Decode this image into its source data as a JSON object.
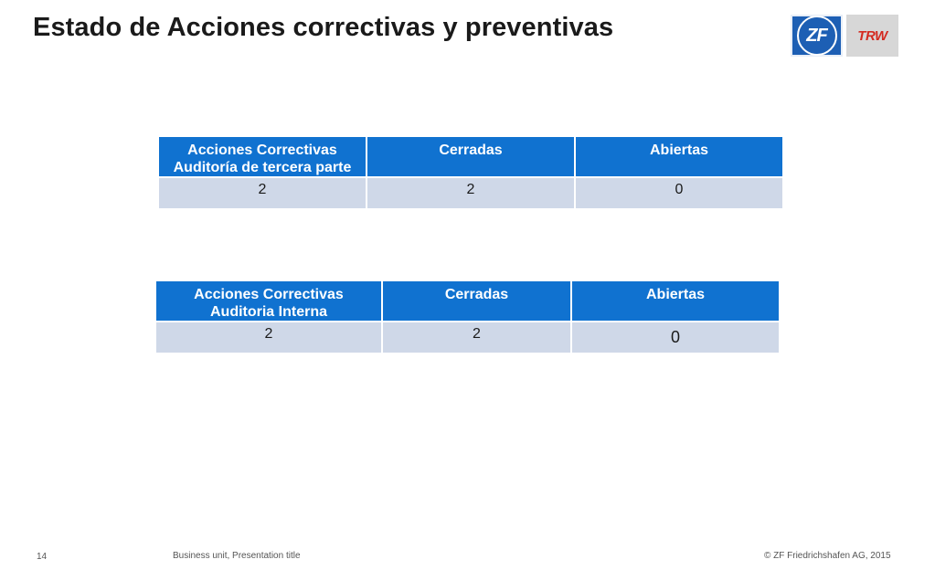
{
  "title": "Estado de Acciones correctivas y preventivas",
  "logos": {
    "zf": "ZF",
    "trw": "TRW"
  },
  "tables": [
    {
      "headers": [
        "Acciones Correctivas\nAuditoría de tercera parte",
        "Cerradas",
        "Abiertas"
      ],
      "header_lines": [
        [
          "Acciones Correctivas",
          "Auditoría de tercera parte"
        ],
        [
          "Cerradas"
        ],
        [
          "Abiertas"
        ]
      ],
      "row": [
        "2",
        "2",
        "0"
      ]
    },
    {
      "header_lines": [
        [
          "Acciones Correctivas",
          "Auditoria Interna"
        ],
        [
          "Cerradas"
        ],
        [
          "Abiertas"
        ]
      ],
      "row": [
        "2",
        "2",
        "0"
      ]
    }
  ],
  "footer": {
    "page_number": "14",
    "presentation": "Business unit, Presentation title",
    "copyright": "© ZF Friedrichshafen AG, 2015"
  },
  "colors": {
    "header_bg": "#1072d0",
    "cell_bg": "#cfd8e8",
    "zf_blue": "#1d5fb4",
    "trw_red": "#d42a20"
  }
}
